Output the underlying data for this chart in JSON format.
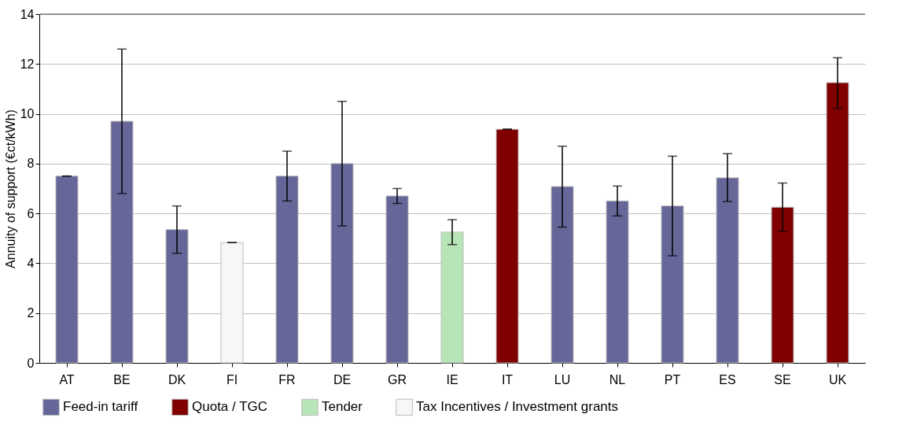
{
  "chart_data": {
    "type": "bar",
    "ylabel": "Annuity of support (€ct/kWh)",
    "categories": [
      "AT",
      "BE",
      "DK",
      "FI",
      "FR",
      "DE",
      "GR",
      "IE",
      "IT",
      "LU",
      "NL",
      "PT",
      "ES",
      "SE",
      "UK"
    ],
    "series": [
      {
        "name": "Feed-in tariff",
        "color": "#666699",
        "values": [
          7.5,
          9.7,
          5.35,
          null,
          7.5,
          8.0,
          6.7,
          null,
          null,
          7.08,
          6.5,
          6.3,
          7.43,
          null,
          null
        ],
        "errors": [
          0,
          [
            6.8,
            12.6
          ],
          [
            4.4,
            6.3
          ],
          null,
          [
            6.5,
            8.5
          ],
          [
            5.5,
            10.5
          ],
          [
            6.4,
            7.0
          ],
          null,
          null,
          [
            5.45,
            8.7
          ],
          [
            5.9,
            7.1
          ],
          [
            4.3,
            8.3
          ],
          [
            6.48,
            8.4
          ],
          null,
          null
        ]
      },
      {
        "name": "Quota / TGC",
        "color": "#800000",
        "values": [
          null,
          null,
          null,
          null,
          null,
          null,
          null,
          null,
          9.38,
          null,
          null,
          null,
          null,
          6.25,
          11.25
        ],
        "errors": [
          null,
          null,
          null,
          null,
          null,
          null,
          null,
          null,
          0,
          null,
          null,
          null,
          null,
          [
            5.28,
            7.22
          ],
          [
            10.22,
            12.25
          ]
        ]
      },
      {
        "name": "Tender",
        "color": "#b7e5b7",
        "values": [
          null,
          null,
          null,
          null,
          null,
          null,
          null,
          5.25,
          null,
          null,
          null,
          null,
          null,
          null,
          null
        ],
        "errors": [
          null,
          null,
          null,
          null,
          null,
          null,
          null,
          [
            4.75,
            5.75
          ],
          null,
          null,
          null,
          null,
          null,
          null,
          null
        ]
      },
      {
        "name": "Tax Incentives / Investment grants",
        "color": "#f7f7f7",
        "values": [
          null,
          null,
          null,
          4.83,
          null,
          null,
          null,
          null,
          null,
          null,
          null,
          null,
          null,
          null,
          null
        ],
        "errors": [
          null,
          null,
          null,
          0,
          null,
          null,
          null,
          null,
          null,
          null,
          null,
          null,
          null,
          null,
          null
        ]
      }
    ],
    "ylim": [
      0,
      14
    ],
    "yticks": [
      0,
      2,
      4,
      6,
      8,
      10,
      12,
      14
    ],
    "grid": "y",
    "legend": "bottom"
  }
}
